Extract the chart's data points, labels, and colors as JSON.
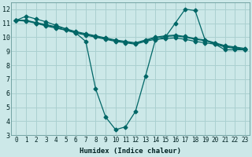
{
  "xlabel": "Humidex (Indice chaleur)",
  "ylabel": "",
  "xlim": [
    -0.5,
    23.5
  ],
  "ylim": [
    3,
    12.5
  ],
  "yticks": [
    3,
    4,
    5,
    6,
    7,
    8,
    9,
    10,
    11,
    12
  ],
  "xticks": [
    0,
    1,
    2,
    3,
    4,
    5,
    6,
    7,
    8,
    9,
    10,
    11,
    12,
    13,
    14,
    15,
    16,
    17,
    18,
    19,
    20,
    21,
    22,
    23
  ],
  "bg_color": "#cce8e8",
  "grid_color": "#aad0d0",
  "line_color": "#006666",
  "line1_x": [
    0,
    1,
    2,
    3,
    4,
    5,
    6,
    7,
    8,
    9,
    10,
    11,
    12,
    13,
    14,
    15,
    16,
    17,
    18,
    19,
    20,
    21,
    22,
    23
  ],
  "line1_y": [
    11.2,
    11.5,
    11.3,
    11.1,
    10.85,
    10.6,
    10.3,
    9.7,
    6.3,
    4.3,
    3.4,
    3.6,
    4.7,
    7.2,
    9.8,
    10.0,
    11.0,
    12.0,
    11.9,
    9.8,
    9.5,
    9.1,
    9.1,
    9.1
  ],
  "line2_x": [
    0,
    1,
    2,
    3,
    4,
    5,
    6,
    7,
    8,
    9,
    10,
    11,
    12,
    13,
    14,
    15,
    16,
    17,
    18,
    19,
    20,
    21,
    22,
    23
  ],
  "line2_y": [
    11.2,
    11.2,
    11.0,
    10.85,
    10.7,
    10.5,
    10.3,
    10.15,
    10.0,
    9.85,
    9.7,
    9.6,
    9.5,
    9.7,
    9.85,
    9.9,
    9.95,
    9.85,
    9.7,
    9.6,
    9.5,
    9.3,
    9.2,
    9.1
  ],
  "line3_x": [
    0,
    1,
    2,
    3,
    4,
    5,
    6,
    7,
    8,
    9,
    10,
    11,
    12,
    13,
    14,
    15,
    16,
    17,
    18,
    19,
    20,
    21,
    22,
    23
  ],
  "line3_y": [
    11.2,
    11.2,
    11.05,
    10.9,
    10.75,
    10.6,
    10.4,
    10.25,
    10.1,
    9.95,
    9.8,
    9.7,
    9.6,
    9.8,
    10.0,
    10.1,
    10.15,
    10.05,
    9.9,
    9.8,
    9.6,
    9.4,
    9.3,
    9.2
  ],
  "line4_x": [
    0,
    1,
    2,
    3,
    4,
    5,
    6,
    7,
    8,
    9,
    10,
    11,
    12,
    13,
    14,
    15,
    16,
    17,
    18,
    19,
    20,
    21,
    22,
    23
  ],
  "line4_y": [
    11.2,
    11.15,
    11.0,
    10.8,
    10.65,
    10.5,
    10.35,
    10.2,
    10.05,
    9.9,
    9.75,
    9.65,
    9.55,
    9.75,
    9.95,
    10.05,
    10.1,
    10.0,
    9.85,
    9.75,
    9.55,
    9.35,
    9.25,
    9.15
  ]
}
